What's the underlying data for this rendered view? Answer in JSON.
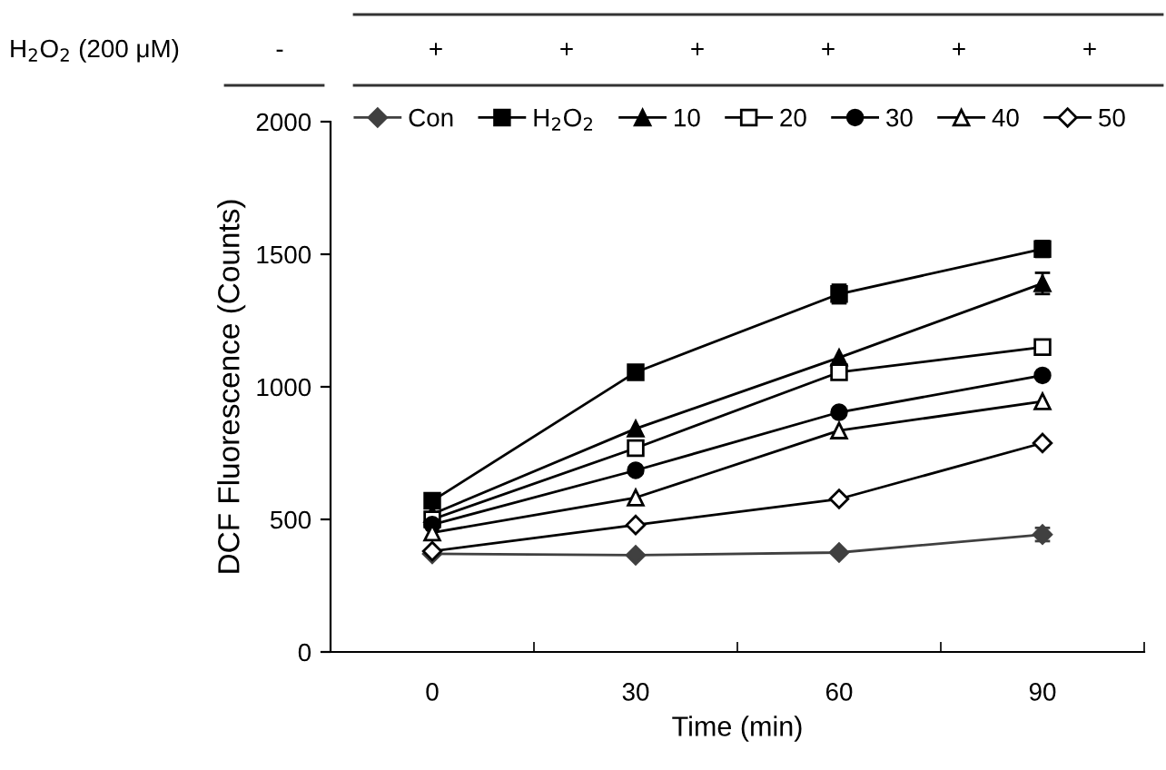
{
  "chart_data": {
    "type": "line",
    "xlabel": "Time (min)",
    "ylabel": "DCF Fluorescence (Counts)",
    "categories": [
      "0",
      "30",
      "60",
      "90"
    ],
    "ylim": [
      0,
      2000
    ],
    "yticks": [
      0,
      500,
      1000,
      1500,
      2000
    ],
    "grid": false,
    "legend": "top",
    "line_style": "solid",
    "annotations": [
      "H$_{2}$O$_{2}$ (200 μM)",
      "-",
      "+",
      "+",
      "+",
      "+",
      "+",
      "+"
    ],
    "series": [
      {
        "name": "Con",
        "color": "#404040",
        "marker": "diamond",
        "colors": [
          "#404040",
          "#404040",
          "#404040",
          "#404040"
        ],
        "values": [
          370,
          365,
          375,
          443
        ],
        "errors": [
          null,
          null,
          null,
          25
        ]
      },
      {
        "name": "H$_{2}$O$_{2}$",
        "color": "#000000",
        "marker": "square",
        "colors": [
          "#000000",
          "#000000",
          "#000000",
          "#000000"
        ],
        "values": [
          570,
          1055,
          1350,
          1520
        ],
        "errors": [
          null,
          null,
          35,
          30
        ]
      },
      {
        "name": "10",
        "color": "#000000",
        "marker": "triangle",
        "colors": [
          "#000000",
          "#000000",
          "#000000",
          "#000000"
        ],
        "values": [
          520,
          842,
          1110,
          1390
        ],
        "errors": [
          null,
          null,
          null,
          40
        ]
      },
      {
        "name": "20",
        "color": "#000000",
        "marker": "square",
        "colors": [
          "#ffffff",
          "#ffffff",
          "#ffffff",
          "#ffffff"
        ],
        "values": [
          500,
          769,
          1055,
          1150
        ]
      },
      {
        "name": "30",
        "color": "#000000",
        "marker": "circle",
        "colors": [
          "#000000",
          "#000000",
          "#000000",
          "#000000"
        ],
        "values": [
          480,
          685,
          904,
          1043
        ]
      },
      {
        "name": "40",
        "color": "#000000",
        "marker": "triangle",
        "colors": [
          "#ffffff",
          "#ffffff",
          "#ffffff",
          "#ffffff"
        ],
        "values": [
          450,
          582,
          835,
          945
        ]
      },
      {
        "name": "50",
        "color": "#000000",
        "marker": "diamond",
        "colors": [
          "#ffffff",
          "#ffffff",
          "#ffffff",
          "#ffffff"
        ],
        "values": [
          380,
          479,
          577,
          788
        ]
      }
    ]
  }
}
